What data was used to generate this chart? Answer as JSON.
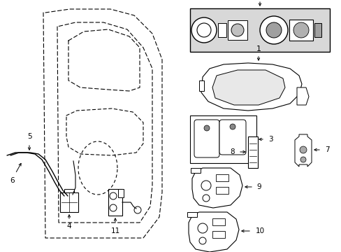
{
  "bg_color": "#ffffff",
  "line_color": "#000000",
  "gray_fill": "#d8d8d8",
  "light_gray": "#e8e8e8",
  "figsize": [
    4.89,
    3.6
  ],
  "dpi": 100,
  "xlim": [
    0,
    489
  ],
  "ylim": [
    0,
    360
  ]
}
